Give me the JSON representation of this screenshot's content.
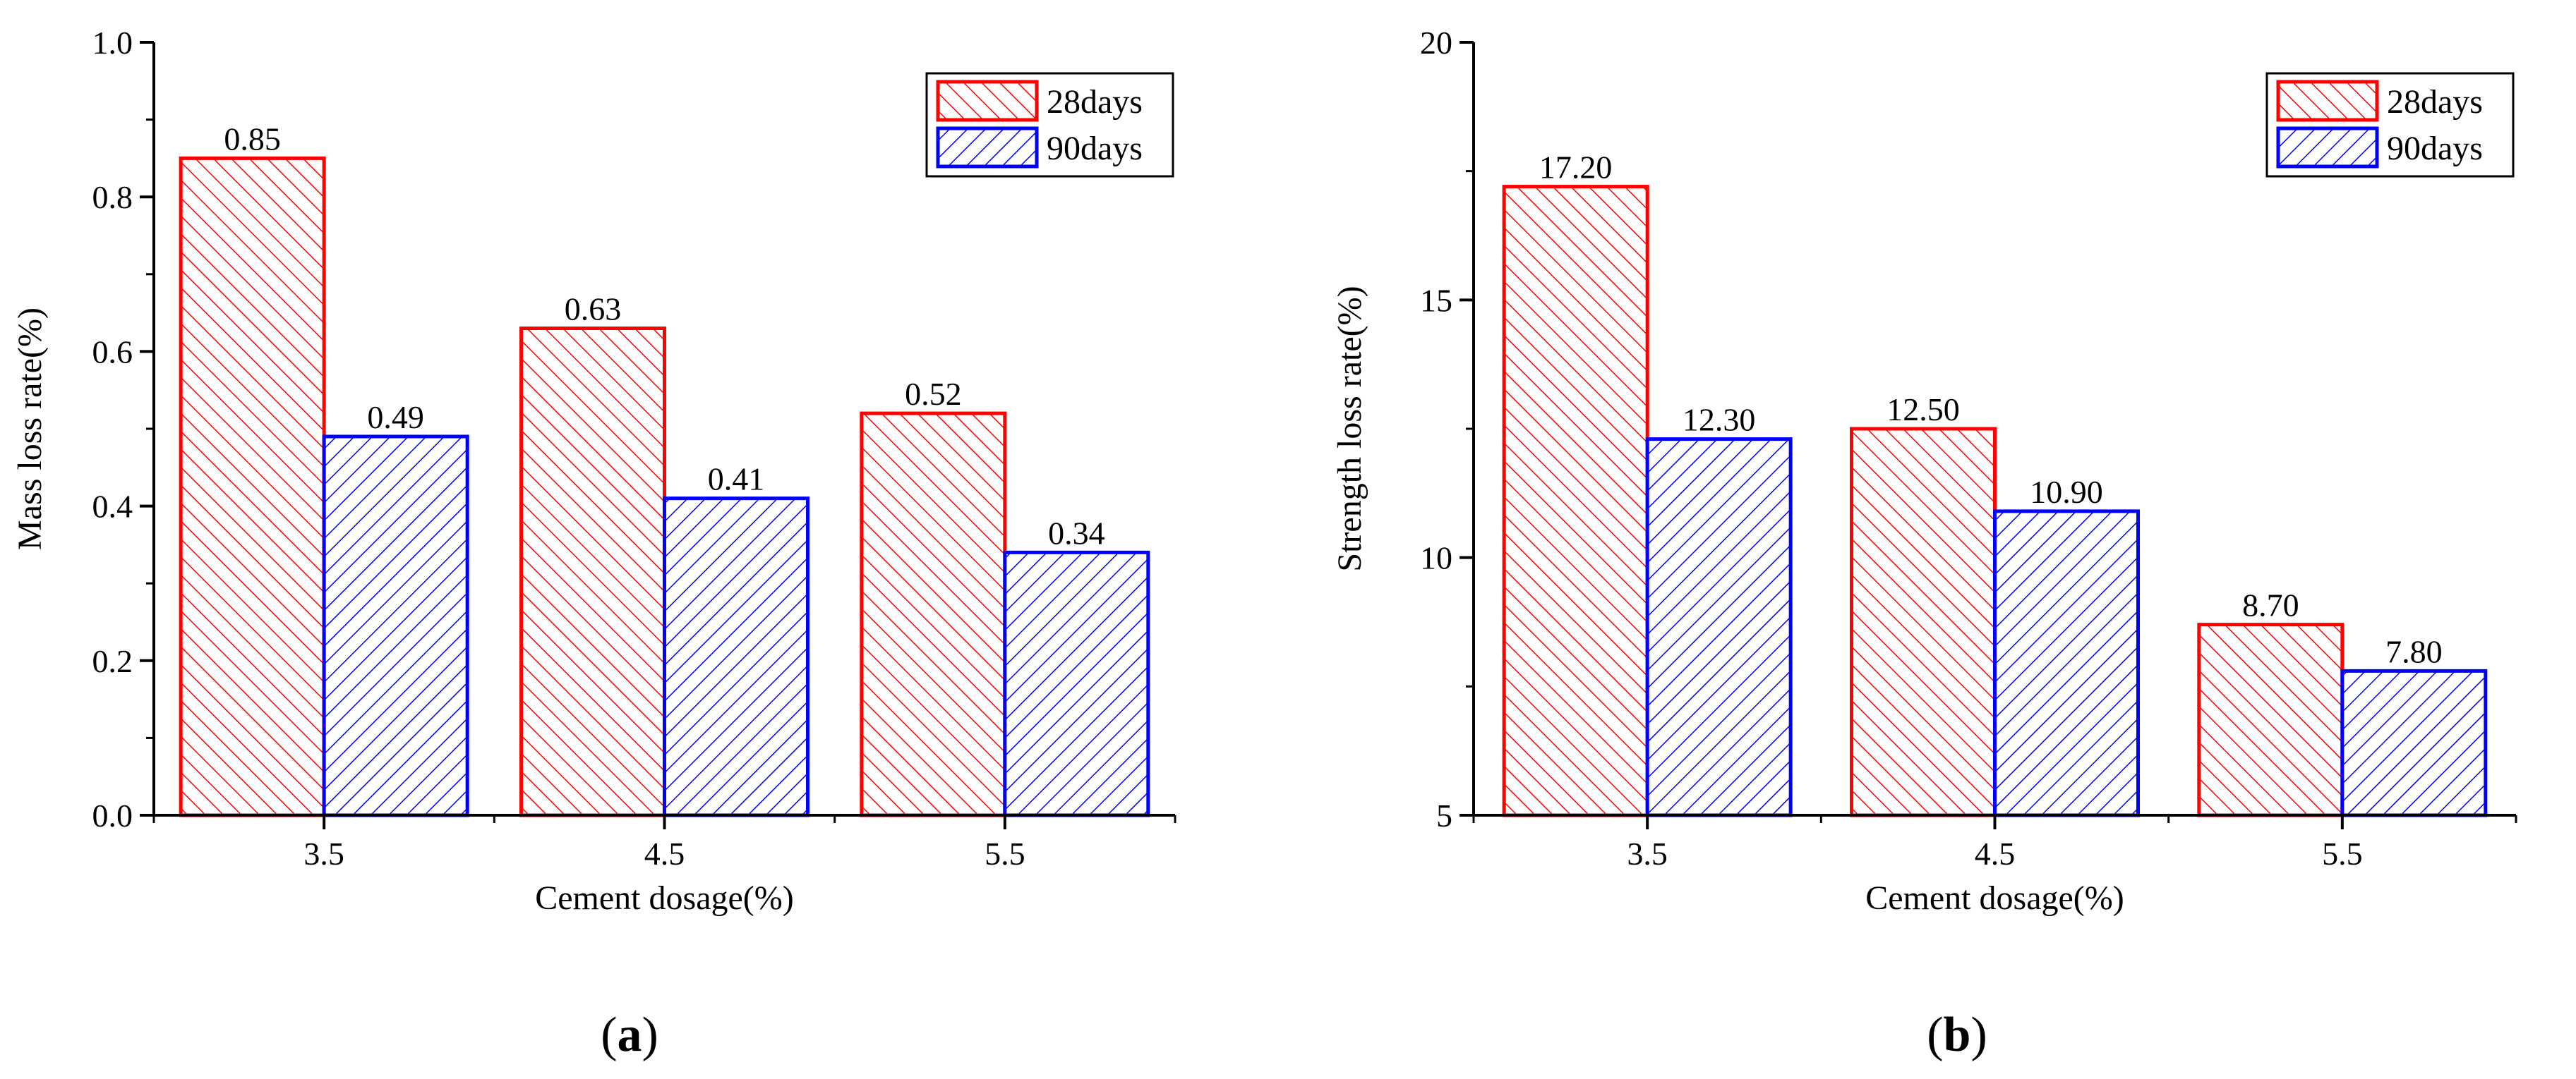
{
  "figure": {
    "panel_labels": [
      {
        "open": "(",
        "letter": "a",
        "close": ")"
      },
      {
        "open": "(",
        "letter": "b",
        "close": ")"
      }
    ]
  },
  "colors": {
    "series_28": "#ff0000",
    "series_90": "#0000ff",
    "axis": "#000000"
  },
  "chart_data": [
    {
      "type": "bar",
      "title": "",
      "xlabel": "Cement dosage(%)",
      "ylabel": "Mass loss rate(%)",
      "categories": [
        "3.5",
        "4.5",
        "5.5"
      ],
      "ylim": [
        0,
        1.0
      ],
      "yticks": [
        0.0,
        0.2,
        0.4,
        0.6,
        0.8,
        1.0
      ],
      "ytick_labels": [
        "0.0",
        "0.2",
        "0.4",
        "0.6",
        "0.8",
        "1.0"
      ],
      "label_decimals": 2,
      "legend_position": "top-right",
      "series": [
        {
          "name": "28days",
          "values": [
            0.85,
            0.63,
            0.52
          ],
          "labels": [
            "0.85",
            "0.63",
            "0.52"
          ],
          "color": "#ff0000",
          "hatch": "forward"
        },
        {
          "name": "90days",
          "values": [
            0.49,
            0.41,
            0.34
          ],
          "labels": [
            "0.49",
            "0.41",
            "0.34"
          ],
          "color": "#0000ff",
          "hatch": "backward"
        }
      ]
    },
    {
      "type": "bar",
      "title": "",
      "xlabel": "Cement dosage(%)",
      "ylabel": "Strength loss rate(%)",
      "categories": [
        "3.5",
        "4.5",
        "5.5"
      ],
      "ylim": [
        5,
        20
      ],
      "yticks": [
        5,
        10,
        15,
        20
      ],
      "ytick_labels": [
        "5",
        "10",
        "15",
        "20"
      ],
      "label_decimals": 2,
      "legend_position": "top-right",
      "series": [
        {
          "name": "28days",
          "values": [
            17.2,
            12.5,
            8.7
          ],
          "labels": [
            "17.20",
            "12.50",
            "8.70"
          ],
          "color": "#ff0000",
          "hatch": "forward"
        },
        {
          "name": "90days",
          "values": [
            12.3,
            10.9,
            7.8
          ],
          "labels": [
            "12.30",
            "10.90",
            "7.80"
          ],
          "color": "#0000ff",
          "hatch": "backward"
        }
      ]
    }
  ]
}
